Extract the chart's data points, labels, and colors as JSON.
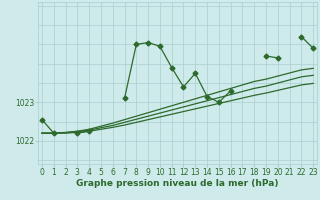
{
  "title": "Graphe pression niveau de la mer (hPa)",
  "bg_color": "#ceeaea",
  "grid_color": "#aacece",
  "line_color": "#2d6a2d",
  "x_ticks": [
    0,
    1,
    2,
    3,
    4,
    5,
    6,
    7,
    8,
    9,
    10,
    11,
    12,
    13,
    14,
    15,
    16,
    17,
    18,
    19,
    20,
    21,
    22,
    23
  ],
  "y_ticks": [
    1022,
    1023
  ],
  "ylim": [
    1021.4,
    1025.6
  ],
  "xlim": [
    -0.3,
    23.3
  ],
  "series_wiggly": [
    1022.55,
    1022.2,
    null,
    1022.2,
    1022.25,
    null,
    null,
    1023.1,
    1024.5,
    1024.55,
    1024.45,
    1023.9,
    1023.4,
    1023.75,
    1023.15,
    1023.0,
    1023.3,
    null,
    null,
    1024.2,
    1024.15,
    null,
    1024.7,
    1024.4
  ],
  "series_linear": [
    [
      1022.2,
      1022.2,
      1022.22,
      1022.25,
      1022.3,
      1022.38,
      1022.46,
      1022.55,
      1022.64,
      1022.73,
      1022.82,
      1022.91,
      1023.0,
      1023.09,
      1023.18,
      1023.27,
      1023.36,
      1023.45,
      1023.54,
      1023.6,
      1023.68,
      1023.76,
      1023.84,
      1023.88
    ],
    [
      1022.2,
      1022.2,
      1022.21,
      1022.24,
      1022.28,
      1022.34,
      1022.4,
      1022.48,
      1022.56,
      1022.64,
      1022.72,
      1022.8,
      1022.88,
      1022.96,
      1023.04,
      1023.12,
      1023.2,
      1023.28,
      1023.36,
      1023.42,
      1023.5,
      1023.58,
      1023.66,
      1023.7
    ],
    [
      1022.2,
      1022.2,
      1022.2,
      1022.22,
      1022.25,
      1022.3,
      1022.35,
      1022.41,
      1022.48,
      1022.55,
      1022.62,
      1022.69,
      1022.76,
      1022.83,
      1022.9,
      1022.97,
      1023.04,
      1023.11,
      1023.18,
      1023.24,
      1023.31,
      1023.38,
      1023.45,
      1023.49
    ]
  ],
  "marker": "D",
  "markersize": 2.5,
  "linewidth": 0.9,
  "title_fontsize": 6.5,
  "tick_fontsize": 5.5
}
